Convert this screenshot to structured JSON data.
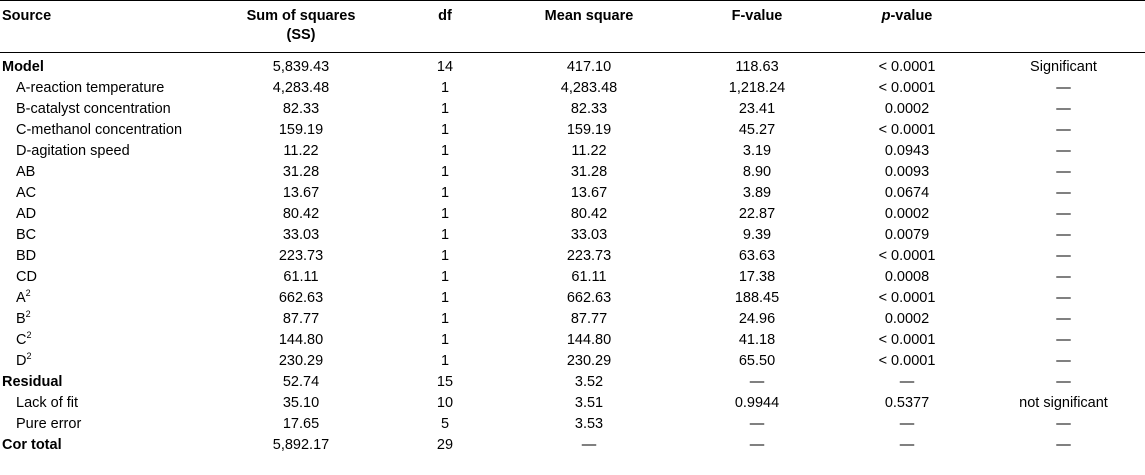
{
  "headers": {
    "source": "Source",
    "ss_line1": "Sum of squares",
    "ss_line2": "(SS)",
    "df": "df",
    "mean_square": "Mean square",
    "f_value": "F-value",
    "p_italic": "p",
    "p_rest": "-value",
    "remark": ""
  },
  "rows": [
    {
      "type": "group",
      "source": "Model",
      "sup": "",
      "ss": "5,839.43",
      "df": "14",
      "ms": "417.10",
      "f": "118.63",
      "p": "< 0.0001",
      "remark": "Significant"
    },
    {
      "type": "sub",
      "source": "A-reaction temperature",
      "sup": "",
      "ss": "4,283.48",
      "df": "1",
      "ms": "4,283.48",
      "f": "1,218.24",
      "p": "< 0.0001",
      "remark": "—"
    },
    {
      "type": "sub",
      "source": "B-catalyst concentration",
      "sup": "",
      "ss": "82.33",
      "df": "1",
      "ms": "82.33",
      "f": "23.41",
      "p": "0.0002",
      "remark": "—"
    },
    {
      "type": "sub",
      "source": "C-methanol concentration",
      "sup": "",
      "ss": "159.19",
      "df": "1",
      "ms": "159.19",
      "f": "45.27",
      "p": "< 0.0001",
      "remark": "—"
    },
    {
      "type": "sub",
      "source": "D-agitation speed",
      "sup": "",
      "ss": "11.22",
      "df": "1",
      "ms": "11.22",
      "f": "3.19",
      "p": "0.0943",
      "remark": "—"
    },
    {
      "type": "sub",
      "source": "AB",
      "sup": "",
      "ss": "31.28",
      "df": "1",
      "ms": "31.28",
      "f": "8.90",
      "p": "0.0093",
      "remark": "—"
    },
    {
      "type": "sub",
      "source": "AC",
      "sup": "",
      "ss": "13.67",
      "df": "1",
      "ms": "13.67",
      "f": "3.89",
      "p": "0.0674",
      "remark": "—"
    },
    {
      "type": "sub",
      "source": "AD",
      "sup": "",
      "ss": "80.42",
      "df": "1",
      "ms": "80.42",
      "f": "22.87",
      "p": "0.0002",
      "remark": "—"
    },
    {
      "type": "sub",
      "source": "BC",
      "sup": "",
      "ss": "33.03",
      "df": "1",
      "ms": "33.03",
      "f": "9.39",
      "p": "0.0079",
      "remark": "—"
    },
    {
      "type": "sub",
      "source": "BD",
      "sup": "",
      "ss": "223.73",
      "df": "1",
      "ms": "223.73",
      "f": "63.63",
      "p": "< 0.0001",
      "remark": "—"
    },
    {
      "type": "sub",
      "source": "CD",
      "sup": "",
      "ss": "61.11",
      "df": "1",
      "ms": "61.11",
      "f": "17.38",
      "p": "0.0008",
      "remark": "—"
    },
    {
      "type": "sub",
      "source": "A",
      "sup": "2",
      "ss": "662.63",
      "df": "1",
      "ms": "662.63",
      "f": "188.45",
      "p": "< 0.0001",
      "remark": "—"
    },
    {
      "type": "sub",
      "source": "B",
      "sup": "2",
      "ss": "87.77",
      "df": "1",
      "ms": "87.77",
      "f": "24.96",
      "p": "0.0002",
      "remark": "—"
    },
    {
      "type": "sub",
      "source": "C",
      "sup": "2",
      "ss": "144.80",
      "df": "1",
      "ms": "144.80",
      "f": "41.18",
      "p": "< 0.0001",
      "remark": "—"
    },
    {
      "type": "sub",
      "source": "D",
      "sup": "2",
      "ss": "230.29",
      "df": "1",
      "ms": "230.29",
      "f": "65.50",
      "p": "< 0.0001",
      "remark": "—"
    },
    {
      "type": "group",
      "source": "Residual",
      "sup": "",
      "ss": "52.74",
      "df": "15",
      "ms": "3.52",
      "f": "—",
      "p": "—",
      "remark": "—"
    },
    {
      "type": "sub",
      "source": "Lack of fit",
      "sup": "",
      "ss": "35.10",
      "df": "10",
      "ms": "3.51",
      "f": "0.9944",
      "p": "0.5377",
      "remark": "not significant"
    },
    {
      "type": "sub",
      "source": "Pure error",
      "sup": "",
      "ss": "17.65",
      "df": "5",
      "ms": "3.53",
      "f": "—",
      "p": "—",
      "remark": "—"
    },
    {
      "type": "group",
      "source": "Cor total",
      "sup": "",
      "ss": "5,892.17",
      "df": "29",
      "ms": "—",
      "f": "—",
      "p": "—",
      "remark": "—"
    }
  ]
}
